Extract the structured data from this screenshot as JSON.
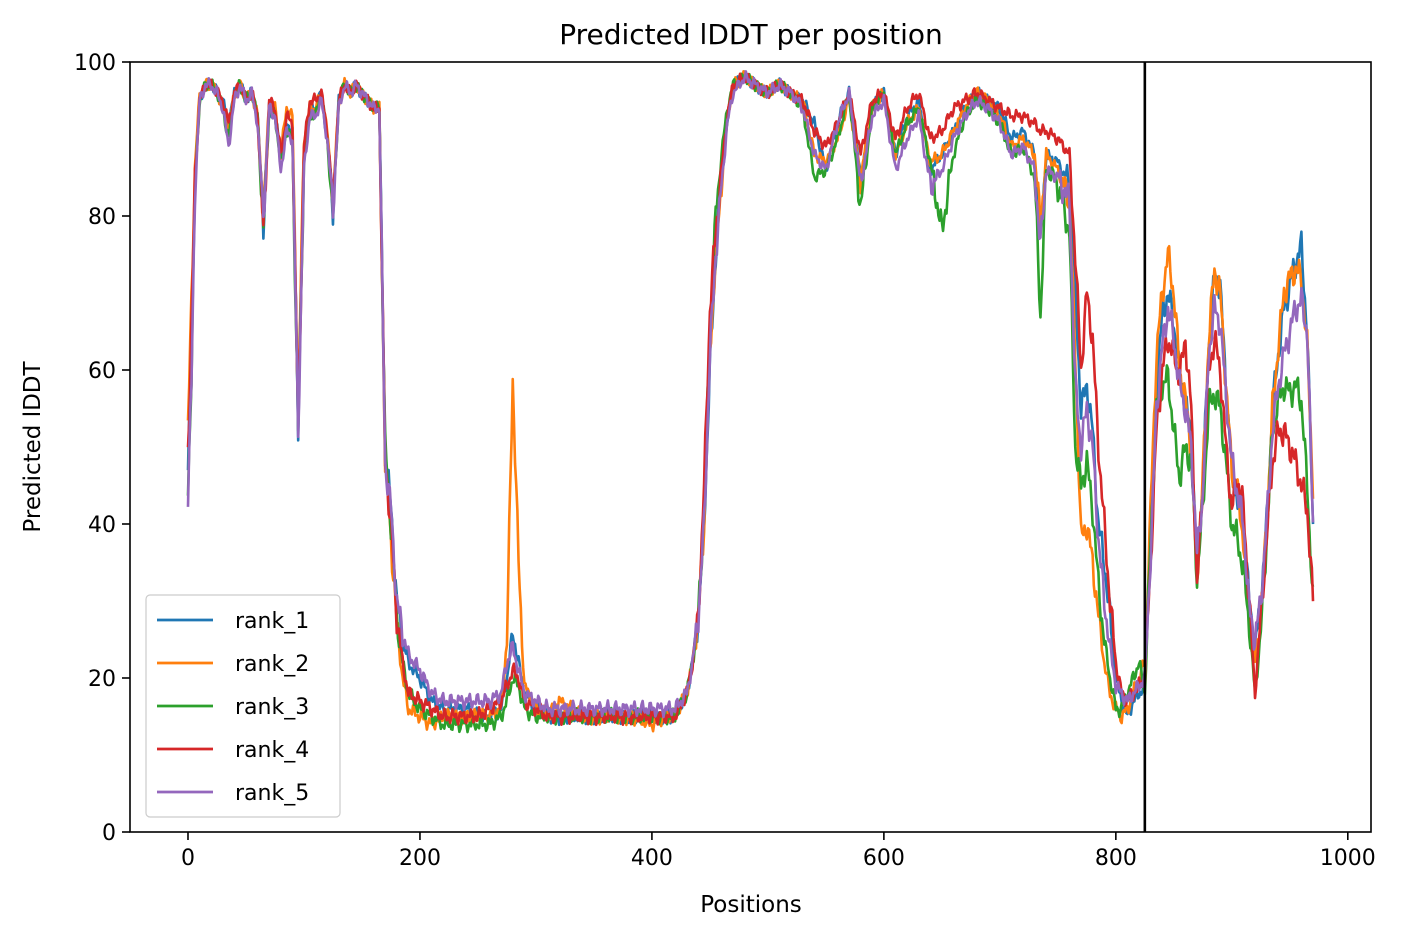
{
  "chart_data": {
    "type": "line",
    "title": "Predicted lDDT per position",
    "xlabel": "Positions",
    "ylabel": "Predicted lDDT",
    "xlim": [
      -50,
      1020
    ],
    "ylim": [
      0,
      100
    ],
    "xticks": [
      0,
      200,
      400,
      600,
      800,
      1000
    ],
    "yticks": [
      0,
      20,
      40,
      60,
      80,
      100
    ],
    "grid": false,
    "legend_position": "lower-left",
    "vline_x": 825,
    "vline_color": "#000000",
    "anchor_x": [
      0,
      3,
      6,
      10,
      15,
      20,
      25,
      30,
      35,
      40,
      45,
      50,
      55,
      60,
      65,
      70,
      75,
      80,
      85,
      90,
      95,
      100,
      105,
      110,
      115,
      120,
      125,
      130,
      135,
      140,
      145,
      150,
      155,
      160,
      165,
      170,
      175,
      180,
      185,
      190,
      200,
      210,
      220,
      230,
      240,
      250,
      260,
      270,
      275,
      280,
      285,
      290,
      300,
      310,
      320,
      340,
      360,
      380,
      400,
      410,
      420,
      430,
      435,
      440,
      445,
      450,
      455,
      460,
      465,
      470,
      480,
      490,
      500,
      510,
      520,
      530,
      540,
      550,
      560,
      570,
      580,
      590,
      600,
      610,
      620,
      630,
      640,
      650,
      660,
      670,
      680,
      690,
      700,
      710,
      720,
      730,
      735,
      740,
      750,
      760,
      765,
      770,
      775,
      780,
      785,
      790,
      795,
      800,
      805,
      810,
      815,
      820,
      825,
      830,
      835,
      840,
      845,
      850,
      855,
      860,
      865,
      870,
      875,
      880,
      885,
      890,
      895,
      900,
      905,
      910,
      915,
      920,
      925,
      930,
      935,
      940,
      945,
      950,
      955,
      960,
      965,
      970
    ],
    "series": [
      {
        "name": "rank_1",
        "color": "#1f77b4",
        "values": [
          47,
          62,
          85,
          95,
          97,
          97,
          96,
          95,
          92,
          96,
          97,
          95,
          96,
          93,
          79,
          94,
          93,
          88,
          92,
          91,
          53,
          88,
          94,
          94,
          96,
          90,
          81,
          95,
          97,
          96,
          97,
          96,
          95,
          94,
          94,
          50,
          42,
          30,
          25,
          22,
          20,
          17,
          16,
          16,
          16,
          15,
          15,
          16,
          20,
          26,
          22,
          18,
          16,
          15,
          15,
          15,
          15,
          15,
          15,
          15,
          15,
          18,
          22,
          28,
          40,
          60,
          75,
          85,
          92,
          97,
          98,
          97,
          96,
          97,
          96,
          95,
          92,
          86,
          92,
          96,
          85,
          94,
          96,
          88,
          93,
          95,
          86,
          88,
          91,
          94,
          96,
          95,
          94,
          90,
          91,
          88,
          78,
          88,
          87,
          84,
          70,
          55,
          58,
          52,
          40,
          35,
          28,
          20,
          17,
          15,
          17,
          18,
          19,
          40,
          58,
          67,
          70,
          66,
          59,
          56,
          51,
          35,
          45,
          63,
          72,
          71,
          58,
          47,
          43,
          40,
          30,
          24,
          30,
          40,
          55,
          62,
          68,
          71,
          74,
          76,
          65,
          40
        ]
      },
      {
        "name": "rank_2",
        "color": "#ff7f0e",
        "values": [
          52,
          70,
          86,
          96,
          97,
          97,
          96,
          94,
          91,
          96,
          97,
          95,
          96,
          93,
          80,
          95,
          94,
          88,
          94,
          93,
          55,
          90,
          94,
          94,
          96,
          91,
          82,
          95,
          97,
          96,
          97,
          96,
          95,
          94,
          94,
          48,
          38,
          27,
          20,
          16,
          15,
          14,
          15,
          15,
          15,
          15,
          15,
          16,
          25,
          59,
          35,
          19,
          16,
          15,
          17,
          15,
          15,
          15,
          14,
          15,
          15,
          18,
          22,
          28,
          40,
          62,
          75,
          84,
          93,
          97,
          98,
          97,
          96,
          97,
          96,
          95,
          88,
          87,
          90,
          95,
          85,
          94,
          96,
          88,
          92,
          94,
          87,
          88,
          91,
          94,
          96,
          95,
          93,
          89,
          90,
          88,
          79,
          88,
          86,
          82,
          62,
          38,
          40,
          35,
          28,
          22,
          18,
          16,
          15,
          16,
          18,
          20,
          22,
          42,
          62,
          70,
          75,
          70,
          60,
          56,
          50,
          33,
          46,
          64,
          73,
          70,
          58,
          47,
          44,
          38,
          28,
          22,
          28,
          40,
          55,
          63,
          70,
          72,
          73,
          72,
          63,
          45
        ]
      },
      {
        "name": "rank_3",
        "color": "#2ca02c",
        "values": [
          44,
          60,
          84,
          95,
          97,
          97,
          96,
          94,
          90,
          96,
          97,
          95,
          96,
          93,
          78,
          94,
          93,
          87,
          91,
          90,
          52,
          87,
          93,
          93,
          96,
          90,
          80,
          95,
          97,
          96,
          97,
          96,
          95,
          94,
          94,
          50,
          40,
          28,
          22,
          18,
          16,
          15,
          14,
          14,
          14,
          14,
          14,
          15,
          17,
          20,
          19,
          16,
          15,
          15,
          15,
          15,
          15,
          15,
          15,
          15,
          15,
          18,
          22,
          28,
          42,
          65,
          80,
          88,
          94,
          97,
          98,
          97,
          96,
          97,
          96,
          94,
          85,
          86,
          90,
          96,
          81,
          94,
          96,
          88,
          92,
          94,
          87,
          78,
          88,
          93,
          95,
          94,
          92,
          88,
          89,
          85,
          67,
          86,
          84,
          78,
          50,
          45,
          48,
          42,
          32,
          25,
          20,
          16,
          16,
          18,
          20,
          22,
          18,
          38,
          55,
          58,
          59,
          52,
          46,
          50,
          48,
          33,
          42,
          55,
          57,
          55,
          48,
          40,
          38,
          34,
          27,
          18,
          26,
          38,
          52,
          56,
          58,
          57,
          58,
          56,
          45,
          30
        ]
      },
      {
        "name": "rank_4",
        "color": "#d62728",
        "values": [
          50,
          65,
          85,
          95,
          97,
          97,
          96,
          95,
          92,
          96,
          97,
          95,
          96,
          93,
          78,
          95,
          94,
          88,
          93,
          92,
          53,
          89,
          95,
          95,
          96,
          91,
          82,
          95,
          97,
          96,
          97,
          96,
          95,
          94,
          94,
          48,
          40,
          28,
          22,
          18,
          17,
          16,
          15,
          15,
          15,
          15,
          16,
          17,
          19,
          21,
          20,
          17,
          16,
          15,
          15,
          15,
          15,
          15,
          15,
          15,
          15,
          18,
          22,
          28,
          45,
          68,
          78,
          86,
          93,
          97,
          98,
          97,
          96,
          97,
          96,
          95,
          91,
          89,
          92,
          96,
          88,
          95,
          96,
          90,
          94,
          96,
          90,
          91,
          94,
          95,
          96,
          95,
          94,
          93,
          93,
          92,
          91,
          91,
          90,
          88,
          75,
          60,
          70,
          64,
          50,
          40,
          30,
          22,
          18,
          17,
          18,
          19,
          20,
          35,
          52,
          60,
          64,
          62,
          59,
          64,
          55,
          32,
          45,
          60,
          64,
          60,
          50,
          42,
          46,
          42,
          30,
          18,
          28,
          38,
          48,
          52,
          52,
          50,
          48,
          45,
          42,
          30
        ]
      },
      {
        "name": "rank_5",
        "color": "#9467bd",
        "values": [
          44,
          58,
          83,
          95,
          97,
          97,
          96,
          94,
          89,
          95,
          97,
          95,
          96,
          92,
          80,
          94,
          93,
          86,
          91,
          90,
          52,
          86,
          93,
          93,
          95,
          90,
          81,
          94,
          97,
          96,
          97,
          96,
          95,
          94,
          94,
          48,
          42,
          30,
          26,
          23,
          21,
          18,
          17,
          17,
          17,
          17,
          17,
          18,
          22,
          24,
          21,
          18,
          17,
          16,
          16,
          16,
          16,
          16,
          16,
          16,
          16,
          18,
          22,
          28,
          40,
          62,
          75,
          84,
          92,
          96,
          98,
          97,
          96,
          97,
          96,
          94,
          88,
          86,
          92,
          96,
          84,
          93,
          95,
          86,
          90,
          93,
          84,
          86,
          90,
          93,
          95,
          94,
          92,
          88,
          89,
          86,
          76,
          86,
          85,
          82,
          58,
          50,
          55,
          50,
          38,
          30,
          24,
          19,
          18,
          17,
          18,
          19,
          20,
          36,
          55,
          63,
          68,
          64,
          58,
          55,
          50,
          36,
          44,
          62,
          68,
          66,
          57,
          48,
          44,
          40,
          29,
          25,
          30,
          40,
          52,
          58,
          62,
          65,
          68,
          69,
          65,
          40
        ]
      }
    ]
  }
}
